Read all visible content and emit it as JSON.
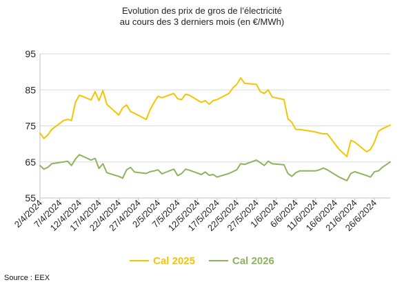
{
  "chart_data": {
    "type": "line",
    "title": "Evolution des prix de gros de l’électricité",
    "subtitle": "au cours des 3 derniers mois (en €/MWh)",
    "xlabel": "",
    "ylabel": "",
    "ylim": [
      55,
      95
    ],
    "yticks": [
      55,
      65,
      75,
      85,
      95
    ],
    "xlim": [
      "2024-04-02",
      "2024-06-30"
    ],
    "xtick_labels": [
      "2/4/2024",
      "7/4/2024",
      "12/4/2024",
      "17/4/2024",
      "22/4/2024",
      "27/4/2024",
      "2/5/2024",
      "7/5/2024",
      "12/5/2024",
      "17/5/2024",
      "22/5/2024",
      "27/5/2024",
      "1/6/2024",
      "6/6/2024",
      "11/6/2024",
      "16/6/2024",
      "21/6/2024",
      "26/6/2024"
    ],
    "grid": "horizontal",
    "legend_position": "bottom",
    "series": [
      {
        "name": "Cal 2025",
        "color": "#F5C400",
        "points": [
          [
            "2024-04-02",
            73.0
          ],
          [
            "2024-04-03",
            71.5
          ],
          [
            "2024-04-04",
            72.5
          ],
          [
            "2024-04-05",
            74.0
          ],
          [
            "2024-04-08",
            76.5
          ],
          [
            "2024-04-09",
            76.8
          ],
          [
            "2024-04-10",
            76.5
          ],
          [
            "2024-04-11",
            81.5
          ],
          [
            "2024-04-12",
            83.5
          ],
          [
            "2024-04-15",
            82.2
          ],
          [
            "2024-04-16",
            84.5
          ],
          [
            "2024-04-17",
            82.0
          ],
          [
            "2024-04-18",
            84.8
          ],
          [
            "2024-04-19",
            81.0
          ],
          [
            "2024-04-22",
            78.0
          ],
          [
            "2024-04-23",
            80.0
          ],
          [
            "2024-04-24",
            80.8
          ],
          [
            "2024-04-25",
            79.0
          ],
          [
            "2024-04-26",
            78.5
          ],
          [
            "2024-04-29",
            76.8
          ],
          [
            "2024-04-30",
            79.5
          ],
          [
            "2024-05-01",
            81.5
          ],
          [
            "2024-05-02",
            83.2
          ],
          [
            "2024-05-03",
            82.8
          ],
          [
            "2024-05-06",
            84.0
          ],
          [
            "2024-05-07",
            82.5
          ],
          [
            "2024-05-08",
            82.3
          ],
          [
            "2024-05-09",
            83.8
          ],
          [
            "2024-05-10",
            83.5
          ],
          [
            "2024-05-13",
            81.5
          ],
          [
            "2024-05-14",
            82.0
          ],
          [
            "2024-05-15",
            81.0
          ],
          [
            "2024-05-16",
            82.0
          ],
          [
            "2024-05-17",
            82.3
          ],
          [
            "2024-05-20",
            84.0
          ],
          [
            "2024-05-21",
            85.5
          ],
          [
            "2024-05-22",
            86.5
          ],
          [
            "2024-05-23",
            88.3
          ],
          [
            "2024-05-24",
            86.8
          ],
          [
            "2024-05-27",
            86.5
          ],
          [
            "2024-05-28",
            84.5
          ],
          [
            "2024-05-29",
            84.0
          ],
          [
            "2024-05-30",
            85.0
          ],
          [
            "2024-05-31",
            83.0
          ],
          [
            "2024-06-03",
            82.3
          ],
          [
            "2024-06-04",
            77.0
          ],
          [
            "2024-06-05",
            76.0
          ],
          [
            "2024-06-06",
            74.0
          ],
          [
            "2024-06-07",
            74.0
          ],
          [
            "2024-06-10",
            73.5
          ],
          [
            "2024-06-11",
            73.3
          ],
          [
            "2024-06-12",
            73.0
          ],
          [
            "2024-06-13",
            72.8
          ],
          [
            "2024-06-14",
            72.8
          ],
          [
            "2024-06-17",
            68.5
          ],
          [
            "2024-06-18",
            67.5
          ],
          [
            "2024-06-19",
            66.5
          ],
          [
            "2024-06-20",
            71.0
          ],
          [
            "2024-06-21",
            70.5
          ],
          [
            "2024-06-24",
            67.8
          ],
          [
            "2024-06-25",
            68.5
          ],
          [
            "2024-06-26",
            70.5
          ],
          [
            "2024-06-27",
            73.5
          ],
          [
            "2024-06-28",
            74.2
          ],
          [
            "2024-06-30",
            75.2
          ]
        ]
      },
      {
        "name": "Cal 2026",
        "color": "#8DB35A",
        "points": [
          [
            "2024-04-02",
            64.0
          ],
          [
            "2024-04-03",
            63.0
          ],
          [
            "2024-04-04",
            63.5
          ],
          [
            "2024-04-05",
            64.5
          ],
          [
            "2024-04-08",
            65.0
          ],
          [
            "2024-04-09",
            65.2
          ],
          [
            "2024-04-10",
            64.0
          ],
          [
            "2024-04-11",
            65.8
          ],
          [
            "2024-04-12",
            67.0
          ],
          [
            "2024-04-15",
            65.5
          ],
          [
            "2024-04-16",
            66.0
          ],
          [
            "2024-04-17",
            63.2
          ],
          [
            "2024-04-18",
            64.5
          ],
          [
            "2024-04-19",
            62.0
          ],
          [
            "2024-04-22",
            61.0
          ],
          [
            "2024-04-23",
            60.5
          ],
          [
            "2024-04-24",
            62.8
          ],
          [
            "2024-04-25",
            63.5
          ],
          [
            "2024-04-26",
            62.2
          ],
          [
            "2024-04-29",
            61.8
          ],
          [
            "2024-04-30",
            62.3
          ],
          [
            "2024-05-01",
            62.5
          ],
          [
            "2024-05-02",
            62.8
          ],
          [
            "2024-05-03",
            61.7
          ],
          [
            "2024-05-06",
            63.0
          ],
          [
            "2024-05-07",
            61.2
          ],
          [
            "2024-05-08",
            61.8
          ],
          [
            "2024-05-09",
            63.0
          ],
          [
            "2024-05-10",
            62.7
          ],
          [
            "2024-05-13",
            61.5
          ],
          [
            "2024-05-14",
            62.2
          ],
          [
            "2024-05-15",
            61.3
          ],
          [
            "2024-05-16",
            61.5
          ],
          [
            "2024-05-17",
            60.8
          ],
          [
            "2024-05-20",
            61.8
          ],
          [
            "2024-05-21",
            62.3
          ],
          [
            "2024-05-22",
            62.8
          ],
          [
            "2024-05-23",
            64.5
          ],
          [
            "2024-05-24",
            64.3
          ],
          [
            "2024-05-27",
            65.5
          ],
          [
            "2024-05-28",
            64.8
          ],
          [
            "2024-05-29",
            64.0
          ],
          [
            "2024-05-30",
            65.2
          ],
          [
            "2024-05-31",
            64.5
          ],
          [
            "2024-06-03",
            64.2
          ],
          [
            "2024-06-04",
            61.8
          ],
          [
            "2024-06-05",
            61.0
          ],
          [
            "2024-06-06",
            62.0
          ],
          [
            "2024-06-07",
            62.5
          ],
          [
            "2024-06-10",
            62.5
          ],
          [
            "2024-06-11",
            62.5
          ],
          [
            "2024-06-12",
            62.8
          ],
          [
            "2024-06-13",
            63.3
          ],
          [
            "2024-06-14",
            62.8
          ],
          [
            "2024-06-17",
            60.8
          ],
          [
            "2024-06-18",
            60.3
          ],
          [
            "2024-06-19",
            59.8
          ],
          [
            "2024-06-20",
            61.8
          ],
          [
            "2024-06-21",
            62.3
          ],
          [
            "2024-06-24",
            61.2
          ],
          [
            "2024-06-25",
            60.8
          ],
          [
            "2024-06-26",
            62.3
          ],
          [
            "2024-06-27",
            62.5
          ],
          [
            "2024-06-28",
            63.5
          ],
          [
            "2024-06-30",
            65.0
          ]
        ]
      }
    ]
  },
  "source": "Source : EEX"
}
